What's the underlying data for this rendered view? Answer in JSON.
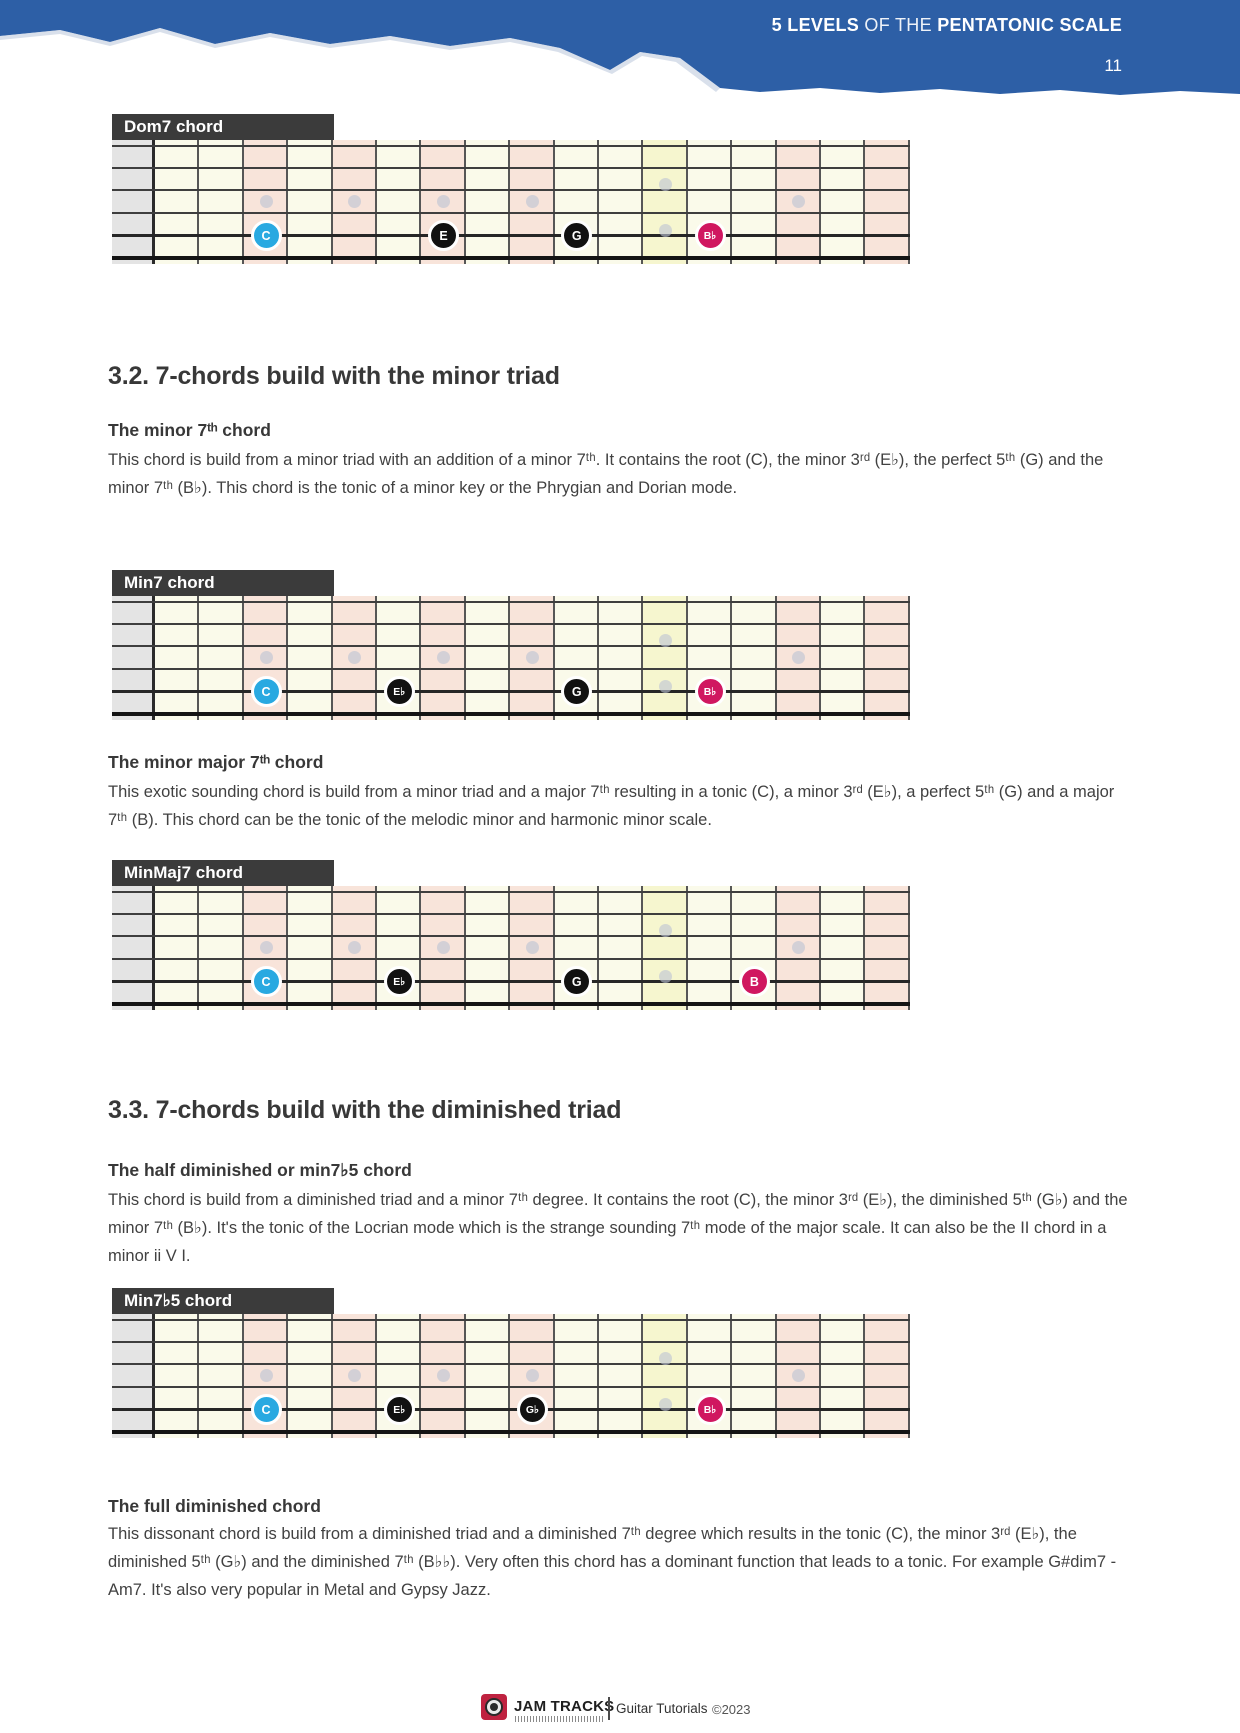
{
  "header": {
    "title_bold1": "5 LEVELS ",
    "title_light": "OF THE ",
    "title_bold2": "PENTATONIC SCALE",
    "page_number": "11",
    "banner_blue": "#2d5fa6"
  },
  "boards": [
    {
      "label": "Dom7 chord",
      "notes": [
        {
          "fret": 3,
          "text": "C",
          "type": "root"
        },
        {
          "fret": 7,
          "text": "E",
          "type": "tone"
        },
        {
          "fret": 10,
          "text": "G",
          "type": "tone"
        },
        {
          "fret": 13,
          "text": "B♭",
          "type": "seventh"
        }
      ]
    },
    {
      "label": "Min7 chord",
      "notes": [
        {
          "fret": 3,
          "text": "C",
          "type": "root"
        },
        {
          "fret": 6,
          "text": "E♭",
          "type": "tone"
        },
        {
          "fret": 10,
          "text": "G",
          "type": "tone"
        },
        {
          "fret": 13,
          "text": "B♭",
          "type": "seventh"
        }
      ]
    },
    {
      "label": "MinMaj7 chord",
      "notes": [
        {
          "fret": 3,
          "text": "C",
          "type": "root"
        },
        {
          "fret": 6,
          "text": "E♭",
          "type": "tone"
        },
        {
          "fret": 10,
          "text": "G",
          "type": "tone"
        },
        {
          "fret": 14,
          "text": "B",
          "type": "seventh"
        }
      ]
    },
    {
      "label": "Min7♭5 chord",
      "notes": [
        {
          "fret": 3,
          "text": "C",
          "type": "root"
        },
        {
          "fret": 6,
          "text": "E♭",
          "type": "tone"
        },
        {
          "fret": 9,
          "text": "G♭",
          "type": "tone"
        },
        {
          "fret": 13,
          "text": "B♭",
          "type": "seventh"
        }
      ]
    }
  ],
  "board_style": {
    "fret_count": 17,
    "pink_frets": [
      3,
      5,
      7,
      9,
      15,
      17
    ],
    "yellow_fret": 12,
    "single_dot_frets": [
      3,
      5,
      7,
      9,
      15
    ],
    "double_dot_fret": 12,
    "note_string": 5,
    "colors": {
      "cream": "#fafaea",
      "pink": "#f8e4da",
      "yellow": "#f6f6cf",
      "nut": "#e4e4e4",
      "label_bg": "#3b3b3b",
      "dot": "#bdc3d4",
      "root": "#29a9e1",
      "tone": "#111111",
      "seventh": "#d01760"
    }
  },
  "content": {
    "s32_heading": "3.2. 7-chords build with the minor triad",
    "min7_title": "The minor 7ᵗʰ chord",
    "min7_body": "This chord is build from a minor triad with an addition of a minor 7ᵗʰ. It contains the root (C), the minor 3ʳᵈ (E♭), the perfect 5ᵗʰ (G) and the minor 7ᵗʰ (B♭). This chord is the tonic of a minor key or the Phrygian and Dorian mode.",
    "minmaj7_title": "The minor major 7ᵗʰ chord",
    "minmaj7_body": "This exotic sounding chord is build from a minor triad and a major 7ᵗʰ resulting in a tonic (C), a minor 3ʳᵈ (E♭), a perfect 5ᵗʰ (G) and a major 7ᵗʰ (B). This chord can be the tonic of the melodic minor and harmonic minor scale.",
    "s33_heading": "3.3. 7-chords build with the diminished triad",
    "halfdim_title": "The half diminished or min7♭5 chord",
    "halfdim_body": "This chord is build from a diminished triad and a minor 7ᵗʰ degree. It contains the root (C), the minor 3ʳᵈ (E♭), the diminished 5ᵗʰ (G♭) and the minor 7ᵗʰ (B♭). It's the tonic of the Locrian mode which is the strange sounding 7ᵗʰ mode of the major scale. It can also be the II chord in a minor ii V I.",
    "fulldim_title": "The full diminished chord",
    "fulldim_body": "This dissonant chord is build from a diminished triad and a diminished 7ᵗʰ degree which results in the tonic (C), the minor 3ʳᵈ (E♭), the diminished 5ᵗʰ (G♭) and the diminished 7ᵗʰ (B♭♭). Very often this chord has a dominant function that leads to a tonic. For example G#dim7 - Am7. It's also very popular in Metal and Gypsy Jazz."
  },
  "footer": {
    "brand": "JAM TRACKS",
    "product": "Guitar Tutorials",
    "copyright": "©2023"
  }
}
